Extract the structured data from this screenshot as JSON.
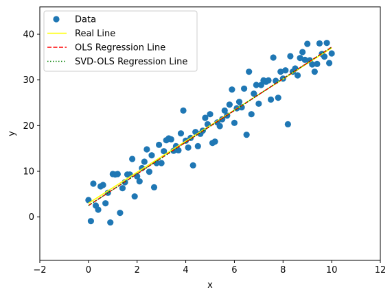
{
  "chart_data": {
    "type": "scatter",
    "title": "",
    "xlabel": "x",
    "ylabel": "y",
    "xlim": [
      -2,
      12
    ],
    "ylim": [
      -9.5,
      46
    ],
    "xticks": [
      -2,
      0,
      2,
      4,
      6,
      8,
      10,
      12
    ],
    "yticks": [
      0,
      10,
      20,
      30,
      40
    ],
    "grid": false,
    "legend_position": "upper-left",
    "colors": {
      "data": "#1f77b4",
      "real_line": "#ffff00",
      "ols_line": "#ff0000",
      "svd_line": "#008000"
    },
    "series": [
      {
        "name": "Data",
        "kind": "scatter",
        "x": [
          0.0,
          0.1,
          0.2,
          0.3,
          0.4,
          0.5,
          0.6,
          0.7,
          0.8,
          0.9,
          1.0,
          1.1,
          1.2,
          1.3,
          1.4,
          1.5,
          1.6,
          1.7,
          1.8,
          1.9,
          2.0,
          2.1,
          2.2,
          2.3,
          2.4,
          2.5,
          2.6,
          2.7,
          2.8,
          2.9,
          3.0,
          3.1,
          3.2,
          3.3,
          3.4,
          3.5,
          3.6,
          3.7,
          3.8,
          3.9,
          4.0,
          4.1,
          4.2,
          4.3,
          4.4,
          4.5,
          4.6,
          4.7,
          4.8,
          4.9,
          5.0,
          5.1,
          5.2,
          5.3,
          5.4,
          5.5,
          5.6,
          5.7,
          5.8,
          5.9,
          6.0,
          6.1,
          6.2,
          6.3,
          6.4,
          6.5,
          6.6,
          6.7,
          6.8,
          6.9,
          7.0,
          7.1,
          7.2,
          7.3,
          7.4,
          7.5,
          7.6,
          7.7,
          7.8,
          7.9,
          8.0,
          8.1,
          8.2,
          8.3,
          8.4,
          8.5,
          8.6,
          8.7,
          8.8,
          8.9,
          9.0,
          9.1,
          9.2,
          9.3,
          9.4,
          9.5,
          9.6,
          9.7,
          9.8,
          9.9,
          10.0
        ],
        "y": [
          3.7,
          -0.9,
          7.3,
          2.5,
          1.6,
          6.7,
          7.0,
          3.0,
          5.3,
          -1.2,
          9.4,
          9.3,
          9.4,
          0.9,
          6.3,
          7.6,
          9.3,
          9.3,
          12.7,
          4.5,
          8.9,
          7.8,
          10.7,
          12.1,
          14.8,
          9.9,
          13.5,
          6.5,
          11.8,
          15.8,
          11.8,
          14.4,
          16.8,
          17.2,
          17.0,
          14.5,
          15.5,
          14.6,
          18.3,
          23.3,
          16.7,
          15.2,
          17.3,
          11.3,
          18.6,
          15.5,
          18.2,
          18.9,
          21.7,
          20.3,
          22.5,
          16.2,
          16.5,
          20.7,
          19.9,
          21.4,
          23.3,
          22.2,
          24.6,
          27.9,
          20.6,
          23.8,
          25.2,
          24.0,
          28.1,
          18.0,
          31.8,
          22.5,
          27.0,
          28.9,
          24.8,
          28.9,
          29.9,
          29.6,
          29.9,
          25.7,
          34.9,
          29.8,
          26.1,
          31.8,
          30.3,
          32.1,
          20.3,
          35.2,
          31.8,
          32.5,
          31.0,
          34.8,
          36.1,
          34.4,
          37.9,
          34.3,
          33.4,
          31.8,
          33.5,
          38.0,
          35.7,
          35.1,
          38.1,
          33.7,
          35.8
        ]
      },
      {
        "name": "Real Line",
        "kind": "line",
        "style": "solid",
        "x": [
          0,
          10
        ],
        "y": [
          3.0,
          37.0
        ]
      },
      {
        "name": "OLS Regression Line",
        "kind": "line",
        "style": "dashed",
        "x": [
          0,
          10
        ],
        "y": [
          2.5,
          37.2
        ]
      },
      {
        "name": "SVD-OLS Regression Line",
        "kind": "line",
        "style": "dotted",
        "x": [
          0,
          10
        ],
        "y": [
          2.5,
          37.2
        ]
      }
    ]
  }
}
